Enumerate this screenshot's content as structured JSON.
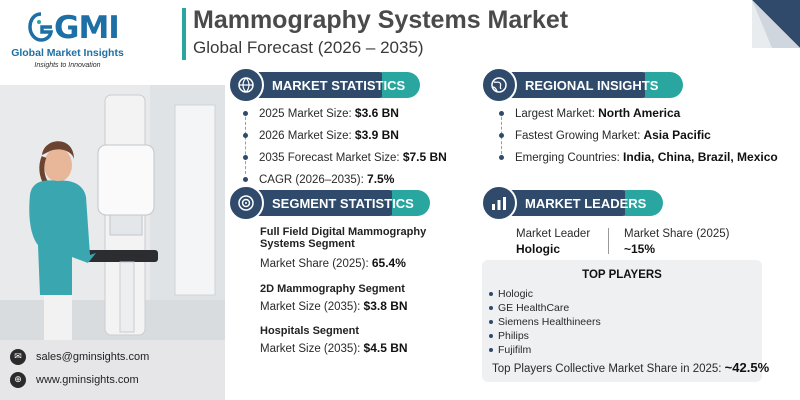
{
  "header": {
    "brand_mark": "GMI",
    "brand_name": "Global Market Insights",
    "brand_tagline": "Insights to Innovation",
    "title": "Mammography Systems Market",
    "subtitle": "Global Forecast (2026 – 2035)"
  },
  "market_statistics": {
    "heading": "MARKET STATISTICS",
    "rows": [
      {
        "label": "2025 Market Size: ",
        "value": "$3.6 BN"
      },
      {
        "label": "2026 Market Size: ",
        "value": "$3.9 BN"
      },
      {
        "label": "2035 Forecast Market Size: ",
        "value": "$7.5 BN"
      },
      {
        "label": "CAGR (2026–2035): ",
        "value": "7.5%"
      }
    ]
  },
  "regional_insights": {
    "heading": "REGIONAL INSIGHTS",
    "rows": [
      {
        "label": "Largest Market: ",
        "value": "North America"
      },
      {
        "label": "Fastest Growing Market: ",
        "value": "Asia Pacific"
      },
      {
        "label": "Emerging Countries: ",
        "value": "India, China, Brazil, Mexico"
      }
    ]
  },
  "segment_statistics": {
    "heading": "SEGMENT STATISTICS",
    "segments": [
      {
        "title_line1": "Full Field Digital Mammography",
        "title_line2": "Systems Segment",
        "label": "Market Share (2025): ",
        "value": "65.4%"
      },
      {
        "title_line1": "2D Mammography Segment",
        "title_line2": "",
        "label": "Market Size (2035): ",
        "value": "$3.8 BN"
      },
      {
        "title_line1": "Hospitals Segment",
        "title_line2": "",
        "label": "Market Size (2035): ",
        "value": "$4.5 BN"
      }
    ]
  },
  "market_leaders": {
    "heading": "MARKET LEADERS",
    "leader_label": "Market Leader",
    "leader_value": "Hologic",
    "share_label": "Market Share (2025)",
    "share_value": "~15%",
    "top_players_heading": "TOP PLAYERS",
    "top_players": [
      "Hologic",
      "GE HealthCare",
      "Siemens Healthineers",
      "Philips",
      "Fujifilm"
    ],
    "collective_label": "Top Players Collective Market Share in 2025: ",
    "collective_value": "~42.5%"
  },
  "contact": {
    "email": "sales@gminsights.com",
    "website": "www.gminsights.com"
  },
  "colors": {
    "navy": "#2f4a6a",
    "teal": "#2aa6a0",
    "brand_blue": "#1d6fa5"
  },
  "icons": [
    "globe-chart-icon",
    "globe-icon",
    "target-icon",
    "bar-chart-icon",
    "email-icon",
    "web-icon"
  ]
}
